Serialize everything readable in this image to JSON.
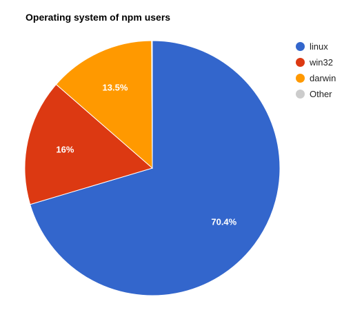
{
  "chart_data": {
    "type": "pie",
    "title": "Operating system of npm users",
    "slices": [
      {
        "label": "linux",
        "value": 70.4,
        "display": "70.4%",
        "color": "#3366cc"
      },
      {
        "label": "win32",
        "value": 16.0,
        "display": "16%",
        "color": "#dc3912"
      },
      {
        "label": "darwin",
        "value": 13.5,
        "display": "13.5%",
        "color": "#ff9900"
      },
      {
        "label": "Other",
        "value": 0.1,
        "display": "",
        "color": "#cccccc"
      }
    ],
    "legend_position": "right"
  }
}
